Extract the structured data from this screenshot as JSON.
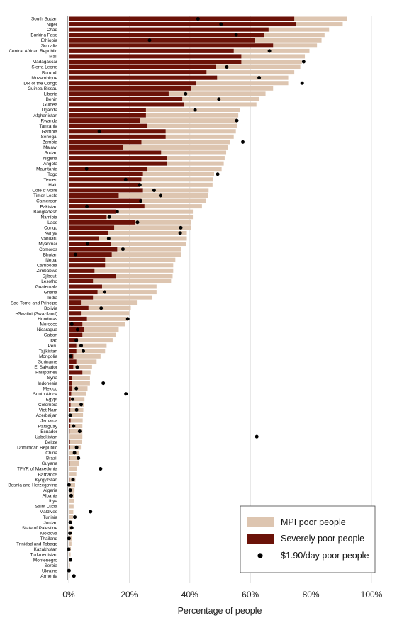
{
  "chart_data": {
    "type": "bar",
    "orientation": "horizontal",
    "xlabel": "Percentage of people",
    "xlim": [
      0,
      100
    ],
    "xticks": [
      "0%",
      "20%",
      "40%",
      "60%",
      "80%",
      "100%"
    ],
    "grid": true,
    "legend_position": "bottom-right",
    "colors": {
      "mpi": "#ddc5b0",
      "severe": "#6b1208",
      "dollar": "#000000"
    },
    "series": [
      {
        "name": "MPI poor people",
        "key": "mpi"
      },
      {
        "name": "Severely poor people",
        "key": "severe"
      },
      {
        "name": "$1.90/day poor people",
        "key": "dollar"
      }
    ],
    "categories": [
      "South Sudan",
      "Niger",
      "Chad",
      "Burkina Faso",
      "Ethiopia",
      "Somalia",
      "Central African Republic",
      "Mali",
      "Madagascar",
      "Sierra Leone",
      "Burundi",
      "Mozambique",
      "DR of the Congo",
      "Guinea-Bissau",
      "Liberia",
      "Benin",
      "Guinea",
      "Uganda",
      "Afghanistan",
      "Rwanda",
      "Tanzania",
      "Gambia",
      "Senegal",
      "Zambia",
      "Malawi",
      "Sudan",
      "Nigeria",
      "Angola",
      "Mauritania",
      "Togo",
      "Yemen",
      "Haiti",
      "Côte d'Ivoire",
      "Timor-Leste",
      "Cameroon",
      "Pakistan",
      "Bangladesh",
      "Namibia",
      "Laos",
      "Congo",
      "Kenya",
      "Vanuatu",
      "Myanmar",
      "Comoros",
      "Bhutan",
      "Nepal",
      "Cambodia",
      "Zimbabwe",
      "Djibouti",
      "Lesotho",
      "Guatemala",
      "Ghana",
      "India",
      "Sao Tome and Principe",
      "Bolivia",
      "eSwatini (Swaziland)",
      "Honduras",
      "Morocco",
      "Nicaragua",
      "Gabon",
      "Iraq",
      "Peru",
      "Tajikistan",
      "Mongolia",
      "Suriname",
      "El Salvador",
      "Philippines",
      "Syria",
      "Indonesia",
      "Mexico",
      "South Africa",
      "Egypt",
      "Colombia",
      "Viet Nam",
      "Azerbaijan",
      "Jamaica",
      "Paraguay",
      "Ecuador",
      "Uzbekistan",
      "Belize",
      "Dominican Republic",
      "China",
      "Brazil",
      "Guyana",
      "TFYR of Macedonia",
      "Barbados",
      "Kyrgyzstan",
      "Bosnia and Herzegovina",
      "Algeria",
      "Albania",
      "Libya",
      "Saint Lucia",
      "Maldives",
      "Tunisia",
      "Jordan",
      "State of Palestine",
      "Moldova",
      "Thailand",
      "Trinidad and Tobago",
      "Kazakhstan",
      "Turkmenistan",
      "Montenegro",
      "Serbia",
      "Ukraine",
      "Armenia"
    ],
    "mpi": [
      92,
      90.5,
      86,
      84.5,
      83.5,
      82,
      79.5,
      78,
      77,
      76.5,
      74.5,
      72.5,
      72.5,
      67.5,
      65,
      63,
      62,
      56.5,
      56,
      55.5,
      55.5,
      55.2,
      54.5,
      53.2,
      52.5,
      52,
      51.5,
      51.2,
      50.5,
      48,
      47.7,
      47.5,
      46.2,
      46,
      45.2,
      44,
      41,
      41,
      40.5,
      40.5,
      39,
      39,
      38.8,
      37.2,
      37.2,
      35.2,
      34.5,
      34.5,
      34.3,
      33.8,
      29,
      29,
      27.5,
      22.5,
      20.5,
      20,
      19.5,
      18.5,
      16.5,
      15.5,
      14.5,
      12.5,
      12,
      10.5,
      9.2,
      7.7,
      7.2,
      7,
      7,
      6.2,
      5.7,
      5.2,
      5,
      4.8,
      4.7,
      4.6,
      4.5,
      4.5,
      4.5,
      4.3,
      4,
      3.5,
      3.5,
      3.3,
      2.7,
      2.5,
      2.2,
      2.1,
      1.9,
      1.8,
      1.7,
      1.6,
      1.5,
      1.4,
      1.2,
      1.1,
      1.1,
      1,
      0.9,
      0.7,
      0.6,
      0.5,
      0.4,
      0.3,
      0.3
    ],
    "severe": [
      74.5,
      75,
      66,
      64.5,
      61.5,
      67.5,
      54.5,
      57,
      57,
      48.5,
      45.5,
      49,
      42,
      40.5,
      33,
      37.5,
      38,
      25.5,
      25.5,
      23.5,
      26,
      32,
      32,
      24,
      18,
      30.5,
      32.5,
      32.5,
      26,
      24.5,
      24,
      23.5,
      24.5,
      16.5,
      24,
      25,
      15.5,
      12.5,
      22,
      15,
      13,
      10,
      14,
      16,
      14.2,
      12,
      12,
      8.5,
      15.5,
      8,
      11,
      9.5,
      8,
      4,
      6.5,
      4,
      6,
      4.5,
      5,
      4.5,
      3,
      2.5,
      2.5,
      1.5,
      2.5,
      1.5,
      4.5,
      1,
      1,
      1,
      0.8,
      0.6,
      0.6,
      0.5,
      0.2,
      0.6,
      0.5,
      0.3,
      0.2,
      0.4,
      0.4,
      0.2,
      0.3,
      0.3,
      0.1,
      0,
      0.3,
      0.1,
      0.1,
      0.1,
      0,
      0.1,
      0.2,
      0.2,
      0,
      0,
      0,
      0.1,
      0,
      0,
      0,
      0,
      0,
      0,
      0
    ],
    "dollar": [
      42.7,
      50.3,
      null,
      55.3,
      26.7,
      null,
      66.3,
      null,
      77.6,
      52.2,
      null,
      62.9,
      77.1,
      null,
      38.6,
      49.6,
      null,
      41.7,
      null,
      55.5,
      null,
      10.1,
      null,
      57.5,
      null,
      null,
      null,
      null,
      5.9,
      49.2,
      18.8,
      23.5,
      28.2,
      30.3,
      23.8,
      6,
      16,
      13.4,
      22.7,
      37,
      36.8,
      13.2,
      6.2,
      17.9,
      2.2,
      null,
      null,
      null,
      null,
      null,
      null,
      11.8,
      null,
      null,
      10.7,
      null,
      19.5,
      1,
      2.9,
      null,
      2.5,
      4.1,
      4.8,
      0.7,
      null,
      2.8,
      null,
      null,
      11.4,
      2.5,
      18.9,
      1.3,
      4.1,
      2.6,
      0.5,
      null,
      1.6,
      3.6,
      62.1,
      null,
      2.6,
      1.9,
      3.2,
      null,
      10.5,
      null,
      1.4,
      0.1,
      0.5,
      0.8,
      null,
      null,
      7.2,
      2,
      0.5,
      1,
      0.4,
      0.1,
      null,
      0,
      null,
      0.6,
      null,
      0.1,
      1.7
    ]
  },
  "legend": {
    "mpi": "MPI poor people",
    "severe": "Severely poor people",
    "dollar": "$1.90/day poor people"
  }
}
